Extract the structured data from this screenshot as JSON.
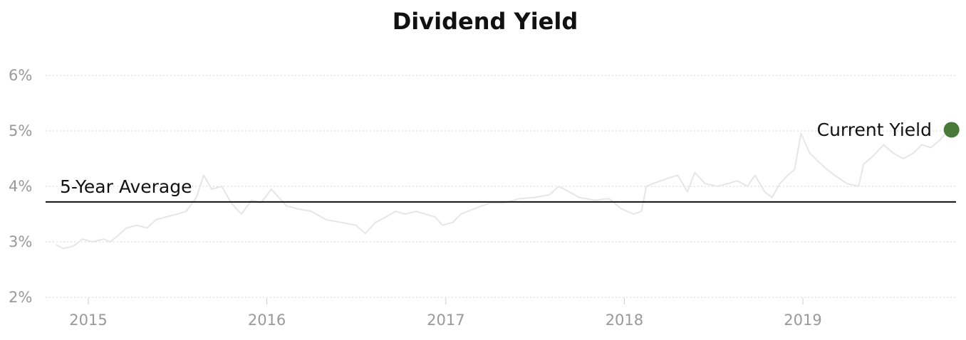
{
  "chart_data": {
    "type": "line",
    "title": "Dividend Yield",
    "xlabel": "",
    "ylabel": "",
    "x_ticks": [
      "2015",
      "2016",
      "2017",
      "2018",
      "2019"
    ],
    "y_ticks": [
      "6%",
      "5%",
      "4%",
      "3%",
      "2%"
    ],
    "ylim": [
      2,
      6
    ],
    "xlim": [
      "2014-10-20",
      "2019-11-01"
    ],
    "grid": true,
    "series": [
      {
        "color": "#e6e6e6",
        "points": [
          [
            "2014-10-27",
            2.95
          ],
          [
            "2014-11-10",
            2.88
          ],
          [
            "2014-12-01",
            2.92
          ],
          [
            "2014-12-20",
            3.05
          ],
          [
            "2015-01-10",
            3.0
          ],
          [
            "2015-02-01",
            3.05
          ],
          [
            "2015-02-15",
            3.0
          ],
          [
            "2015-03-01",
            3.1
          ],
          [
            "2015-03-20",
            3.25
          ],
          [
            "2015-04-10",
            3.3
          ],
          [
            "2015-05-01",
            3.25
          ],
          [
            "2015-05-20",
            3.4
          ],
          [
            "2015-06-10",
            3.45
          ],
          [
            "2015-07-01",
            3.5
          ],
          [
            "2015-07-20",
            3.55
          ],
          [
            "2015-08-10",
            3.8
          ],
          [
            "2015-08-25",
            4.2
          ],
          [
            "2015-09-10",
            3.95
          ],
          [
            "2015-10-01",
            4.0
          ],
          [
            "2015-10-20",
            3.7
          ],
          [
            "2015-11-10",
            3.5
          ],
          [
            "2015-12-01",
            3.75
          ],
          [
            "2015-12-20",
            3.7
          ],
          [
            "2016-01-10",
            3.95
          ],
          [
            "2016-01-25",
            3.8
          ],
          [
            "2016-02-10",
            3.65
          ],
          [
            "2016-03-01",
            3.6
          ],
          [
            "2016-04-01",
            3.55
          ],
          [
            "2016-05-01",
            3.4
          ],
          [
            "2016-06-01",
            3.35
          ],
          [
            "2016-07-01",
            3.3
          ],
          [
            "2016-07-20",
            3.15
          ],
          [
            "2016-08-10",
            3.35
          ],
          [
            "2016-09-01",
            3.45
          ],
          [
            "2016-09-20",
            3.55
          ],
          [
            "2016-10-10",
            3.5
          ],
          [
            "2016-11-01",
            3.55
          ],
          [
            "2016-11-20",
            3.5
          ],
          [
            "2016-12-10",
            3.45
          ],
          [
            "2016-12-25",
            3.3
          ],
          [
            "2017-01-15",
            3.35
          ],
          [
            "2017-02-01",
            3.5
          ],
          [
            "2017-03-01",
            3.6
          ],
          [
            "2017-04-01",
            3.7
          ],
          [
            "2017-05-01",
            3.7
          ],
          [
            "2017-06-01",
            3.78
          ],
          [
            "2017-07-01",
            3.8
          ],
          [
            "2017-08-01",
            3.85
          ],
          [
            "2017-08-20",
            4.0
          ],
          [
            "2017-09-10",
            3.9
          ],
          [
            "2017-10-01",
            3.8
          ],
          [
            "2017-11-01",
            3.75
          ],
          [
            "2017-12-01",
            3.78
          ],
          [
            "2017-12-25",
            3.6
          ],
          [
            "2018-01-20",
            3.5
          ],
          [
            "2018-02-05",
            3.55
          ],
          [
            "2018-02-15",
            4.0
          ],
          [
            "2018-03-01",
            4.05
          ],
          [
            "2018-04-01",
            4.15
          ],
          [
            "2018-04-20",
            4.2
          ],
          [
            "2018-05-10",
            3.9
          ],
          [
            "2018-05-25",
            4.25
          ],
          [
            "2018-06-15",
            4.05
          ],
          [
            "2018-07-10",
            4.0
          ],
          [
            "2018-08-01",
            4.05
          ],
          [
            "2018-08-20",
            4.1
          ],
          [
            "2018-09-10",
            4.0
          ],
          [
            "2018-09-25",
            4.2
          ],
          [
            "2018-10-15",
            3.9
          ],
          [
            "2018-10-30",
            3.8
          ],
          [
            "2018-11-15",
            4.05
          ],
          [
            "2018-12-01",
            4.2
          ],
          [
            "2018-12-15",
            4.3
          ],
          [
            "2018-12-28",
            4.95
          ],
          [
            "2019-01-15",
            4.6
          ],
          [
            "2019-02-01",
            4.45
          ],
          [
            "2019-02-20",
            4.3
          ],
          [
            "2019-03-15",
            4.15
          ],
          [
            "2019-04-01",
            4.05
          ],
          [
            "2019-04-25",
            4.0
          ],
          [
            "2019-05-05",
            4.4
          ],
          [
            "2019-05-25",
            4.55
          ],
          [
            "2019-06-15",
            4.75
          ],
          [
            "2019-07-05",
            4.6
          ],
          [
            "2019-07-25",
            4.5
          ],
          [
            "2019-08-15",
            4.6
          ],
          [
            "2019-09-01",
            4.75
          ],
          [
            "2019-09-20",
            4.7
          ],
          [
            "2019-10-10",
            4.85
          ],
          [
            "2019-10-25",
            5.02
          ]
        ]
      }
    ],
    "reference_line": {
      "label": "5-Year Average",
      "value": 3.72,
      "color": "#111111"
    },
    "current_point": {
      "label": "Current Yield",
      "date": "2019-11-01",
      "value": 5.02,
      "color": "#4a7a3a"
    }
  }
}
